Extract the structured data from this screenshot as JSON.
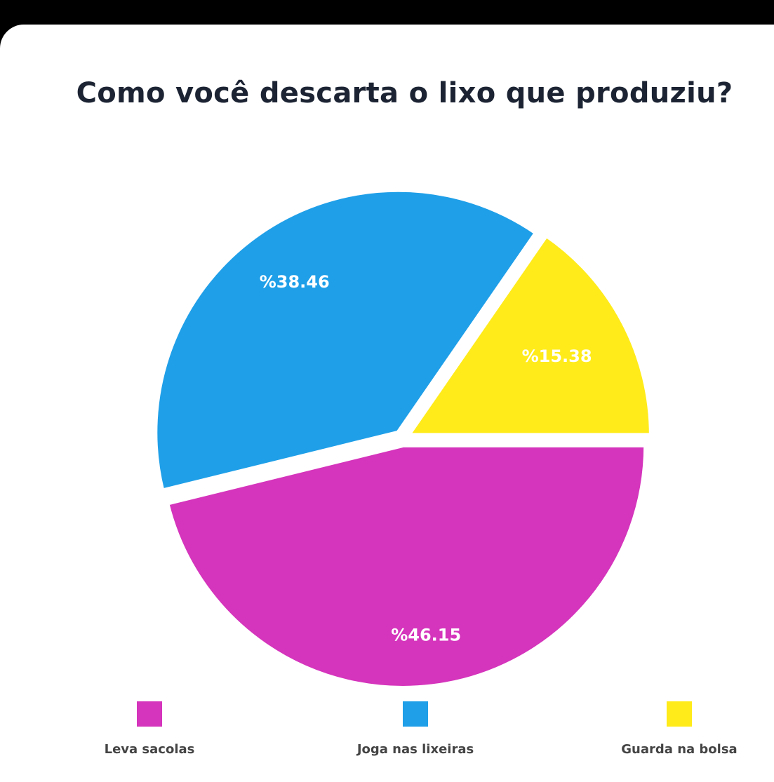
{
  "chart_data": {
    "type": "pie",
    "title": "Como você descarta o lixo que produziu?",
    "categories": [
      "Leva sacolas",
      "Joga nas lixeiras",
      "Guarda na bolsa"
    ],
    "values": [
      46.15,
      38.46,
      15.38
    ],
    "labels": [
      "%46.15",
      "%38.46",
      "%15.38"
    ],
    "colors": [
      "#d534bc",
      "#1f9fe8",
      "#ffeb1a"
    ],
    "legend_position": "bottom"
  }
}
